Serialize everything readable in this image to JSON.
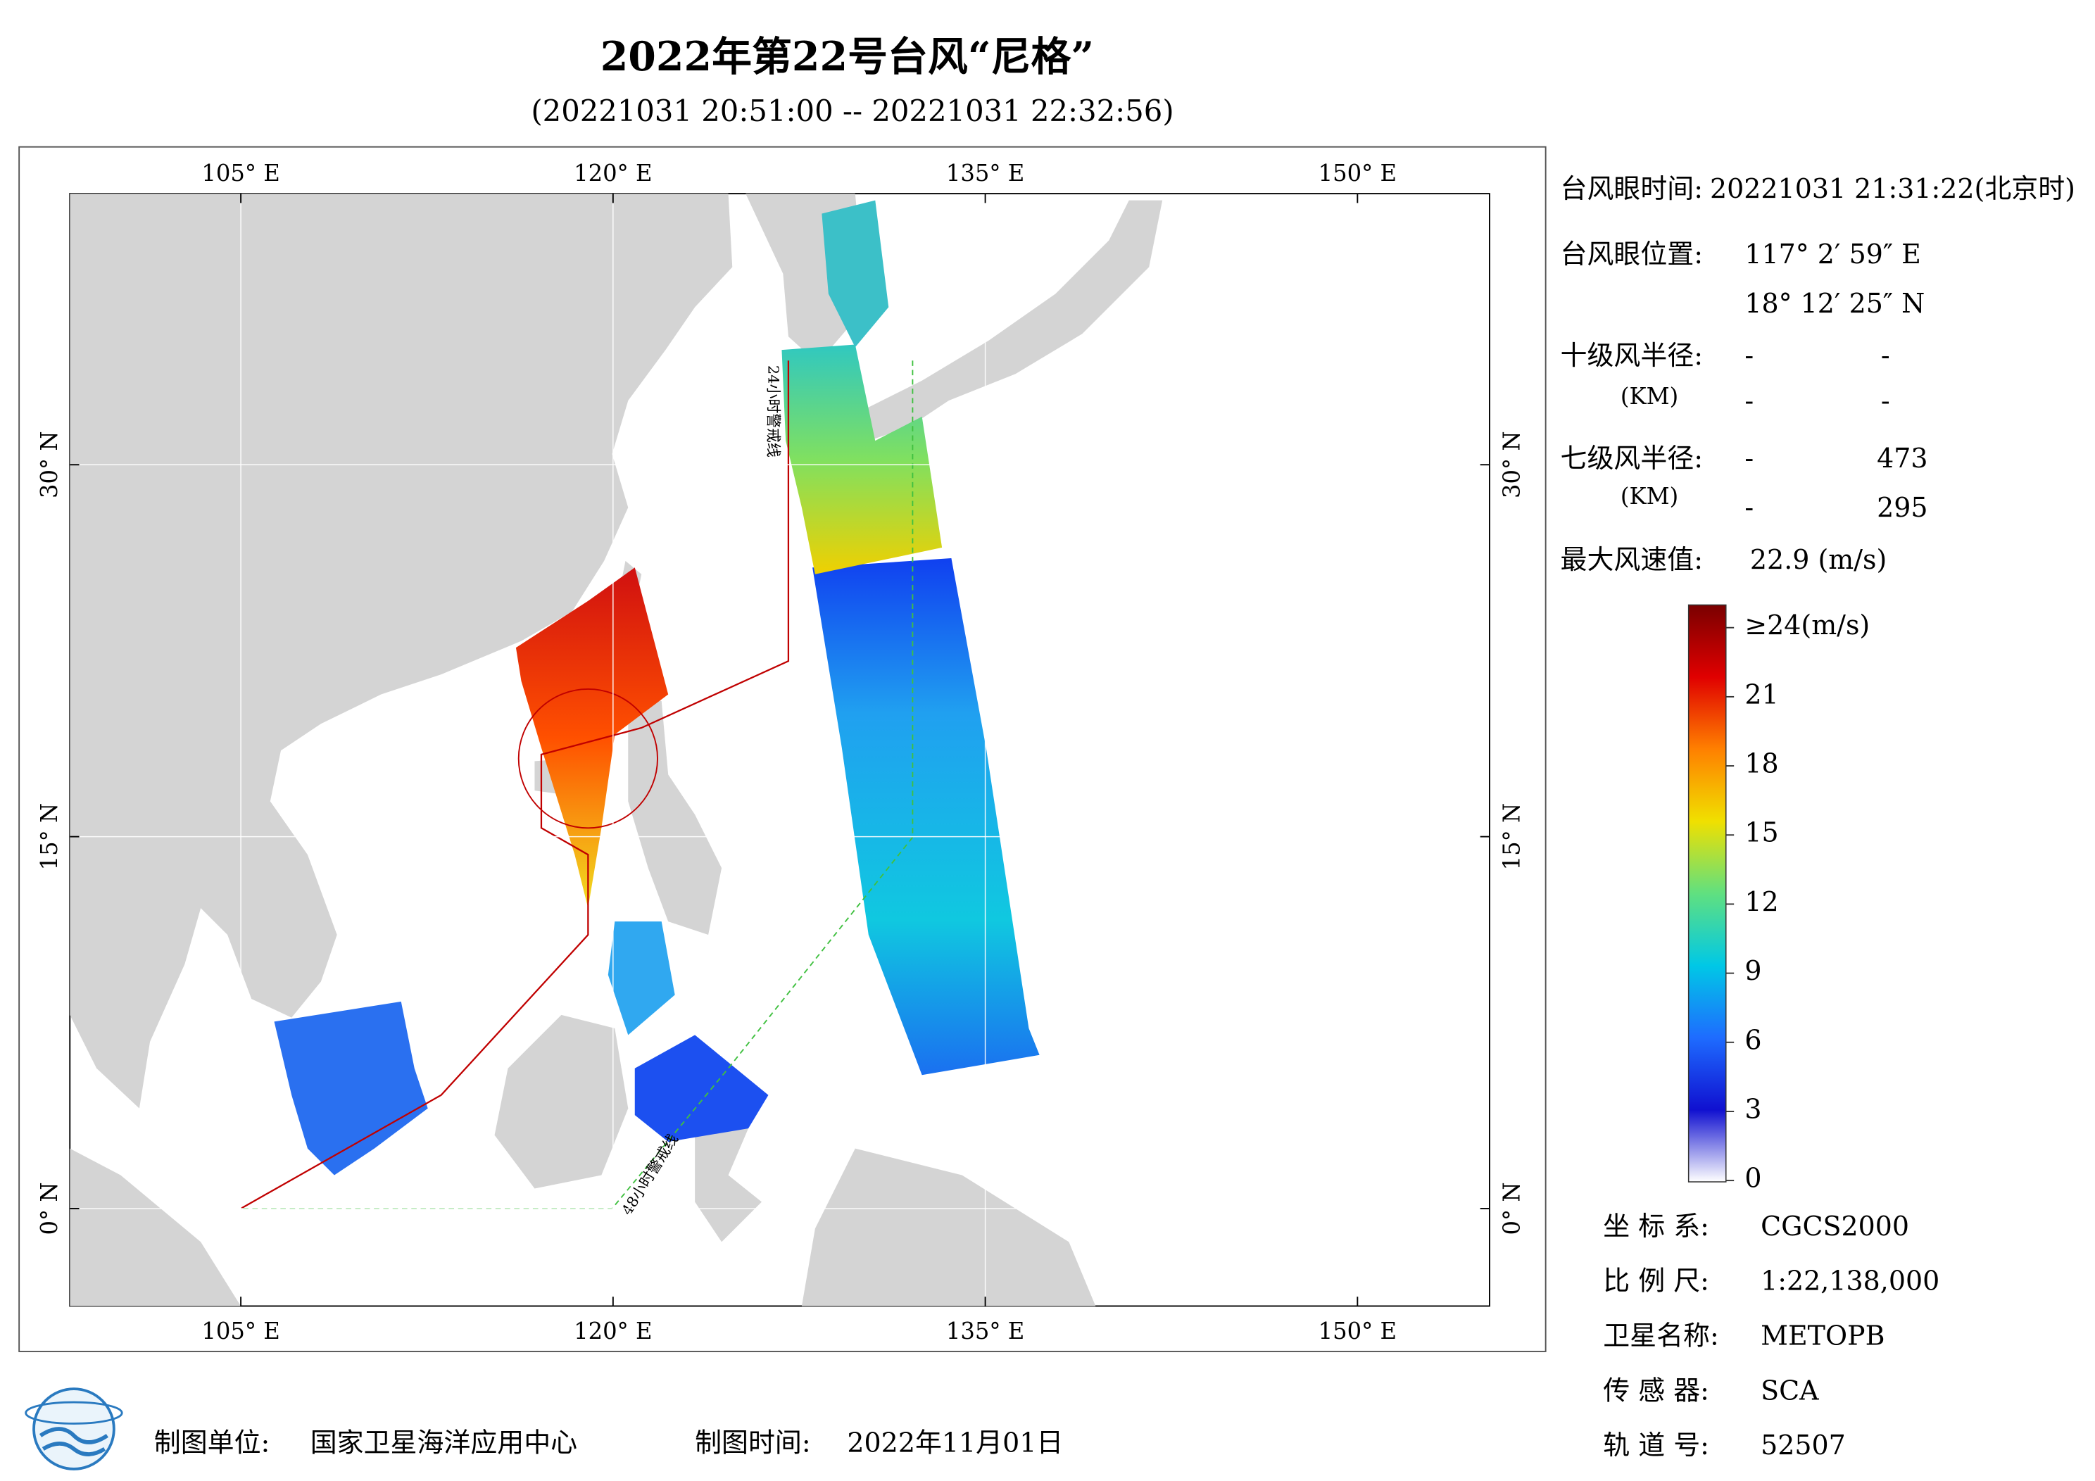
{
  "title": "2022年第22号台风“尼格”",
  "subtitle": "(20221031 20:51:00 -- 20221031 22:32:56)",
  "map": {
    "lon_ticks": [
      {
        "value": 105,
        "label": "105° E"
      },
      {
        "value": 120,
        "label": "120° E"
      },
      {
        "value": 135,
        "label": "135° E"
      },
      {
        "value": 150,
        "label": "150° E"
      }
    ],
    "lat_ticks": [
      {
        "value": 0,
        "label": "0° N"
      },
      {
        "value": 15,
        "label": "15° N"
      },
      {
        "value": 30,
        "label": "30° N"
      }
    ],
    "warning_24h": "24小时警戒线",
    "warning_48h": "48小时警戒线"
  },
  "info": {
    "eye_time_label": "台风眼时间:",
    "eye_time": "20221031 21:31:22(北京时)",
    "eye_position_label": "台风眼位置:",
    "eye_lon": "117° 2′ 59″ E",
    "eye_lat": "18° 12′ 25″ N",
    "force10_label": "十级风半径:",
    "force10_unit": "(KM)",
    "force10_values": [
      "-",
      "-",
      "-",
      "-"
    ],
    "force7_label": "七级风半径:",
    "force7_unit": "(KM)",
    "force7_values": [
      "-",
      "473",
      "-",
      "295"
    ],
    "max_wind_label": "最大风速值:",
    "max_wind": "22.9  (m/s)"
  },
  "colorbar": {
    "ticks": [
      {
        "value": 24,
        "label": "≥24(m/s)"
      },
      21,
      18,
      15,
      12,
      9,
      6,
      3,
      0
    ]
  },
  "meta": [
    [
      "坐 标 系:",
      "CGCS2000"
    ],
    [
      "比 例 尺:",
      "1:22,138,000"
    ],
    [
      "卫星名称:",
      "METOPB"
    ],
    [
      "传 感 器:",
      "SCA"
    ],
    [
      "轨 道 号:",
      "52507"
    ]
  ],
  "footer": {
    "unit_label": "制图单位:",
    "unit": "国家卫星海洋应用中心",
    "date_label": "制图时间:",
    "date": "2022年11月01日"
  }
}
